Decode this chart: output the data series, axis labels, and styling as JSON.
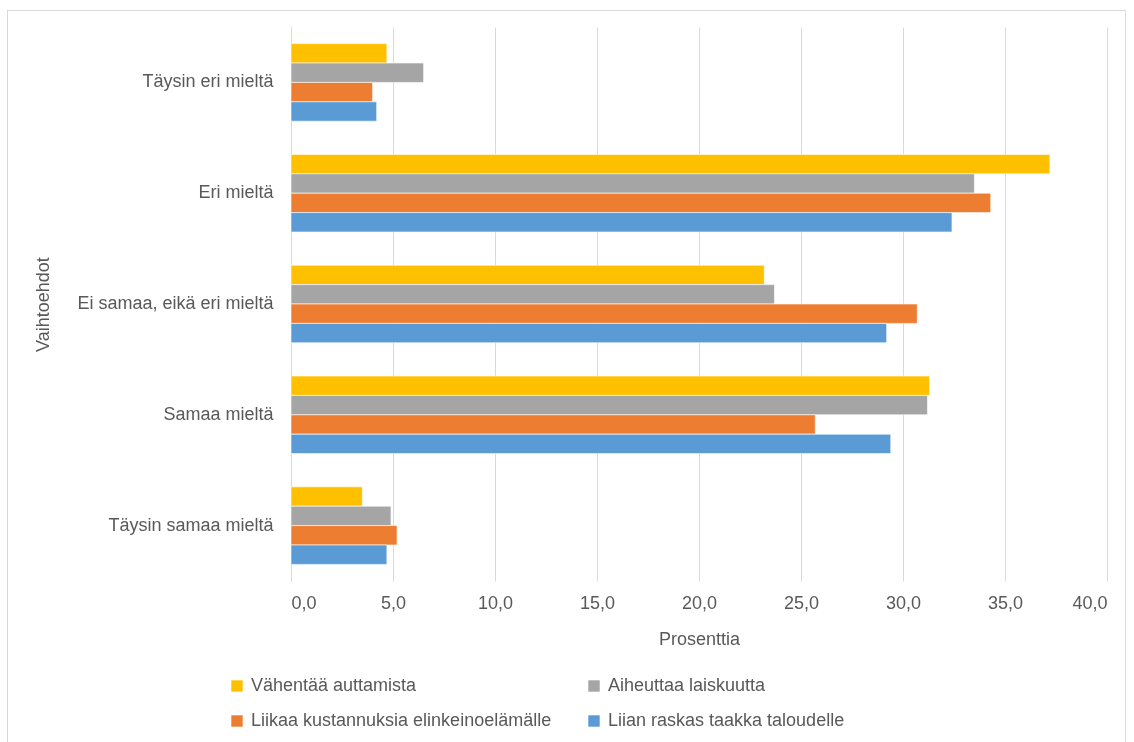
{
  "chart_data": {
    "type": "bar",
    "orientation": "horizontal",
    "xlabel": "Prosenttia",
    "ylabel": "Vaihtoehdot",
    "categories": [
      "Täysin eri mieltä",
      "Eri mieltä",
      "Ei samaa, eikä eri mieltä",
      "Samaa mieltä",
      "Täysin samaa mieltä"
    ],
    "series": [
      {
        "name": "Vähentää auttamista",
        "color": "#ffc000",
        "values": [
          4.7,
          37.2,
          23.2,
          31.3,
          3.5
        ]
      },
      {
        "name": "Aiheuttaa laiskuutta",
        "color": "#a5a5a5",
        "values": [
          6.5,
          33.5,
          23.7,
          31.2,
          4.9
        ]
      },
      {
        "name": "Liikaa kustannuksia elinkeinoelämälle",
        "color": "#ed7d31",
        "values": [
          4.0,
          34.3,
          30.7,
          25.7,
          5.2
        ]
      },
      {
        "name": "Liian raskas taakka taloudelle",
        "color": "#5b9bd5",
        "values": [
          4.2,
          32.4,
          29.2,
          29.4,
          4.7
        ]
      }
    ],
    "xlim": [
      0,
      40
    ],
    "xticks": [
      {
        "value": 0,
        "label": "0,0"
      },
      {
        "value": 5,
        "label": "5,0"
      },
      {
        "value": 10,
        "label": "10,0"
      },
      {
        "value": 15,
        "label": "15,0"
      },
      {
        "value": 20,
        "label": "20,0"
      },
      {
        "value": 25,
        "label": "25,0"
      },
      {
        "value": 30,
        "label": "30,0"
      },
      {
        "value": 35,
        "label": "35,0"
      },
      {
        "value": 40,
        "label": "40,0"
      }
    ],
    "grid": "x",
    "legend": "bottom"
  }
}
